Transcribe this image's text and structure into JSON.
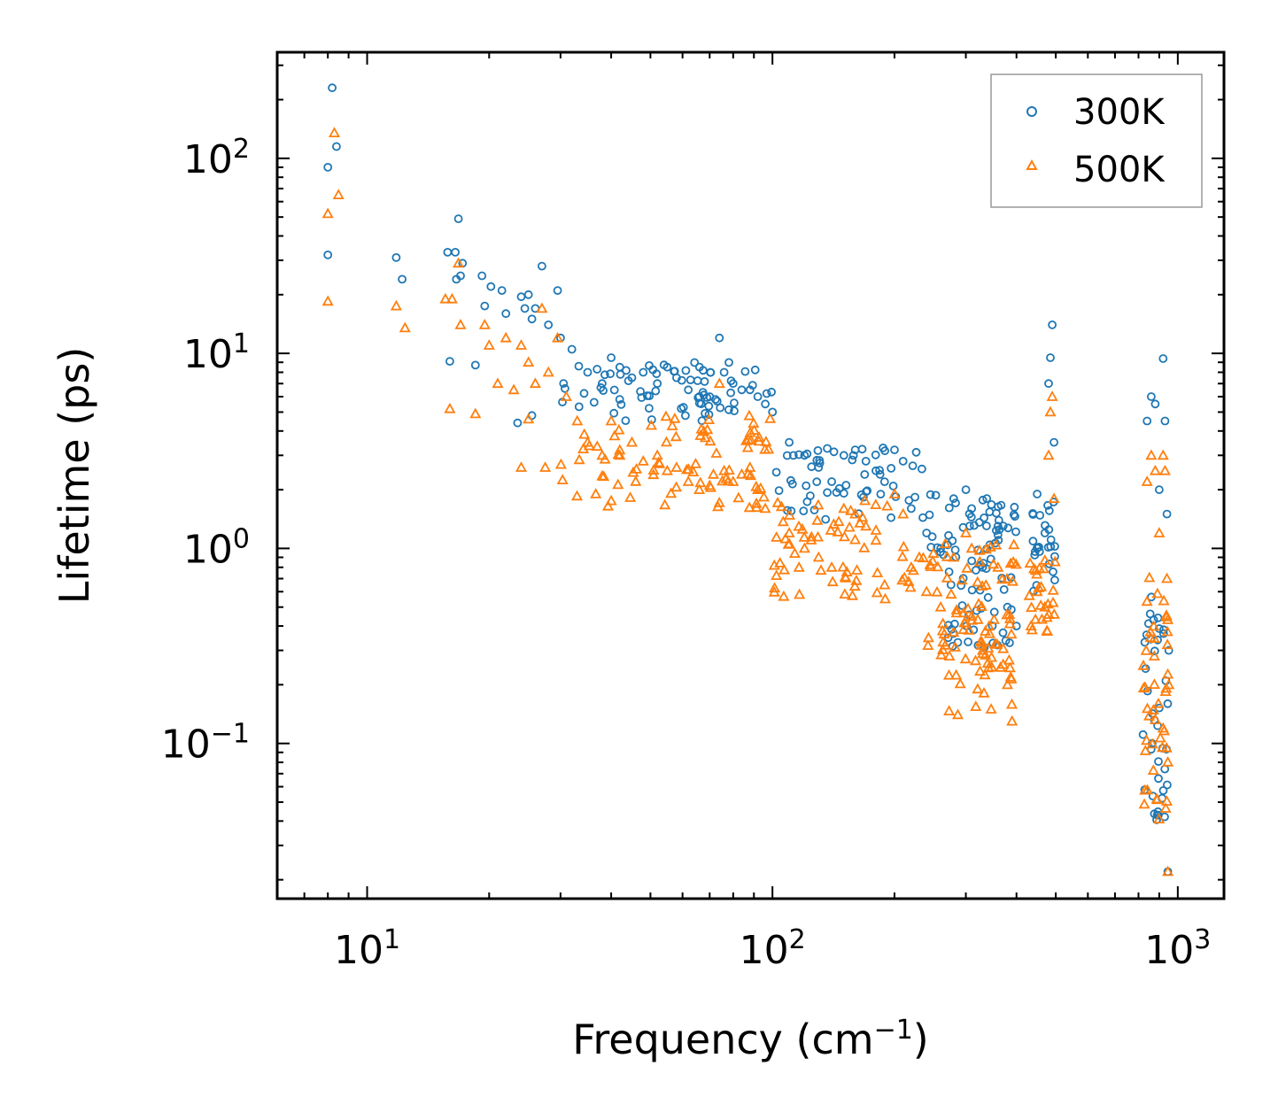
{
  "chart_data": {
    "type": "scatter",
    "xscale": "log",
    "yscale": "log",
    "xlim": [
      6,
      1300
    ],
    "ylim": [
      0.016,
      350
    ],
    "xlabel": "Frequency (cm",
    "xlabel_sup": "−1",
    "xlabel_end": ")",
    "ylabel": "Lifetime (ps)",
    "x_ticks": [
      {
        "value": 10,
        "base": "10",
        "exp": "1"
      },
      {
        "value": 100,
        "base": "10",
        "exp": "2"
      },
      {
        "value": 1000,
        "base": "10",
        "exp": "3"
      }
    ],
    "y_ticks": [
      {
        "value": 0.1,
        "base": "10",
        "exp": "−1"
      },
      {
        "value": 1,
        "base": "10",
        "exp": "0"
      },
      {
        "value": 10,
        "base": "10",
        "exp": "1"
      },
      {
        "value": 100,
        "base": "10",
        "exp": "2"
      }
    ],
    "legend_position": "top-right",
    "series": [
      {
        "name": "300K",
        "color": "#1f77b4",
        "marker": "circle",
        "points": [
          [
            8.0,
            90
          ],
          [
            8.2,
            230
          ],
          [
            8.4,
            115
          ],
          [
            8.0,
            32
          ],
          [
            11.8,
            31
          ],
          [
            12.2,
            24
          ],
          [
            15.8,
            33
          ],
          [
            16.5,
            33
          ],
          [
            16.8,
            49
          ],
          [
            16.6,
            24
          ],
          [
            17.2,
            29
          ],
          [
            17.0,
            25
          ],
          [
            16.0,
            9.1
          ],
          [
            19.2,
            25
          ],
          [
            20.2,
            22
          ],
          [
            21.5,
            21
          ],
          [
            19.5,
            17.5
          ],
          [
            18.5,
            8.7
          ],
          [
            24.0,
            19.5
          ],
          [
            24.5,
            17
          ],
          [
            25.0,
            20
          ],
          [
            25.5,
            15
          ],
          [
            26.0,
            17
          ],
          [
            27.0,
            28
          ],
          [
            28.0,
            14
          ],
          [
            29.5,
            21
          ],
          [
            23.5,
            4.4
          ],
          [
            25.5,
            4.8
          ],
          [
            22.0,
            16
          ],
          [
            30,
            12
          ],
          [
            32,
            10.5
          ],
          [
            35,
            8.0
          ],
          [
            38,
            7.0
          ],
          [
            40,
            9.5
          ],
          [
            42,
            8.5
          ],
          [
            45,
            7.5
          ],
          [
            48,
            8.0
          ],
          [
            52,
            7.0
          ],
          [
            55,
            8.5
          ],
          [
            58,
            7.5
          ],
          [
            62,
            6.5
          ],
          [
            66,
            6.0
          ],
          [
            70,
            6.0
          ],
          [
            74,
            12
          ],
          [
            76,
            8.0
          ],
          [
            80,
            7.0
          ],
          [
            84,
            6.5
          ],
          [
            88,
            6.5
          ],
          [
            92,
            6.0
          ],
          [
            96,
            5.5
          ],
          [
            100,
            5.0
          ],
          [
            110,
            3.5
          ],
          [
            120,
            3.0
          ],
          [
            130,
            2.6
          ],
          [
            140,
            2.2
          ],
          [
            150,
            3.0
          ],
          [
            160,
            3.2
          ],
          [
            170,
            2.8
          ],
          [
            180,
            2.5
          ],
          [
            200,
            3.2
          ],
          [
            210,
            2.8
          ],
          [
            220,
            1.6
          ],
          [
            240,
            1.2
          ],
          [
            260,
            1.0
          ],
          [
            280,
            1.8
          ],
          [
            300,
            2.0
          ],
          [
            310,
            1.6
          ],
          [
            330,
            0.8
          ],
          [
            360,
            1.3
          ],
          [
            380,
            0.5
          ],
          [
            400,
            0.4
          ],
          [
            450,
            1.9
          ],
          [
            470,
            1.2
          ],
          [
            490,
            14
          ],
          [
            485,
            9.5
          ],
          [
            480,
            7
          ],
          [
            495,
            3.5
          ],
          [
            840,
            4.5
          ],
          [
            860,
            6.0
          ],
          [
            880,
            5.5
          ],
          [
            900,
            2.0
          ],
          [
            920,
            9.4
          ],
          [
            930,
            4.5
          ],
          [
            940,
            1.5
          ],
          [
            950,
            0.3
          ],
          [
            945,
            0.022
          ]
        ],
        "bands": [
          [
            30,
            100,
            4.5,
            9.0,
            70
          ],
          [
            100,
            240,
            1.4,
            3.3,
            55
          ],
          [
            240,
            400,
            0.9,
            1.9,
            45
          ],
          [
            270,
            400,
            0.3,
            0.9,
            40
          ],
          [
            430,
            500,
            0.6,
            1.8,
            25
          ],
          [
            820,
            950,
            0.04,
            0.6,
            40
          ]
        ]
      },
      {
        "name": "500K",
        "color": "#ff7f0e",
        "marker": "triangle",
        "points": [
          [
            8.0,
            52
          ],
          [
            8.3,
            135
          ],
          [
            8.5,
            65
          ],
          [
            8.0,
            18.5
          ],
          [
            11.8,
            17.5
          ],
          [
            12.4,
            13.5
          ],
          [
            15.6,
            19
          ],
          [
            16.2,
            19
          ],
          [
            16.8,
            29
          ],
          [
            16.0,
            5.2
          ],
          [
            17.0,
            14
          ],
          [
            18.5,
            4.9
          ],
          [
            19.5,
            14
          ],
          [
            20.0,
            11
          ],
          [
            21.0,
            7
          ],
          [
            22.0,
            12
          ],
          [
            23.0,
            6.5
          ],
          [
            24.0,
            11
          ],
          [
            25.0,
            9
          ],
          [
            26.0,
            7
          ],
          [
            27.0,
            17
          ],
          [
            28.0,
            8
          ],
          [
            29.5,
            12
          ],
          [
            24.0,
            2.6
          ],
          [
            27.5,
            2.6
          ],
          [
            25.0,
            4.6
          ],
          [
            31,
            6.0
          ],
          [
            33,
            4.5
          ],
          [
            35,
            3.5
          ],
          [
            38,
            3.0
          ],
          [
            40,
            4.5
          ],
          [
            42,
            3.0
          ],
          [
            45,
            3.5
          ],
          [
            48,
            2.8
          ],
          [
            52,
            3.0
          ],
          [
            55,
            2.5
          ],
          [
            58,
            2.6
          ],
          [
            62,
            2.2
          ],
          [
            66,
            2.0
          ],
          [
            70,
            2.1
          ],
          [
            74,
            7.0
          ],
          [
            76,
            2.5
          ],
          [
            80,
            2.2
          ],
          [
            84,
            2.4
          ],
          [
            88,
            2.6
          ],
          [
            92,
            2.0
          ],
          [
            96,
            1.6
          ],
          [
            110,
            1.2
          ],
          [
            120,
            1.0
          ],
          [
            130,
            0.9
          ],
          [
            140,
            0.8
          ],
          [
            150,
            1.6
          ],
          [
            160,
            1.5
          ],
          [
            170,
            1.3
          ],
          [
            180,
            1.1
          ],
          [
            200,
            1.9
          ],
          [
            210,
            1.5
          ],
          [
            220,
            0.8
          ],
          [
            240,
            0.6
          ],
          [
            260,
            0.5
          ],
          [
            280,
            0.9
          ],
          [
            300,
            1.2
          ],
          [
            310,
            1.0
          ],
          [
            330,
            0.3
          ],
          [
            360,
            0.8
          ],
          [
            380,
            0.2
          ],
          [
            390,
            0.13
          ],
          [
            450,
            0.6
          ],
          [
            470,
            0.5
          ],
          [
            490,
            6.0
          ],
          [
            485,
            5.0
          ],
          [
            480,
            3.0
          ],
          [
            495,
            1.8
          ],
          [
            840,
            2.2
          ],
          [
            860,
            3.0
          ],
          [
            880,
            2.5
          ],
          [
            900,
            1.2
          ],
          [
            920,
            3.0
          ],
          [
            930,
            2.5
          ],
          [
            940,
            0.7
          ],
          [
            950,
            0.2
          ],
          [
            945,
            0.022
          ]
        ],
        "bands": [
          [
            30,
            100,
            1.6,
            4.8,
            80
          ],
          [
            100,
            240,
            0.55,
            1.9,
            65
          ],
          [
            240,
            400,
            0.3,
            1.1,
            50
          ],
          [
            260,
            400,
            0.14,
            0.5,
            45
          ],
          [
            430,
            500,
            0.35,
            0.9,
            25
          ],
          [
            820,
            950,
            0.04,
            0.8,
            45
          ]
        ]
      }
    ]
  }
}
